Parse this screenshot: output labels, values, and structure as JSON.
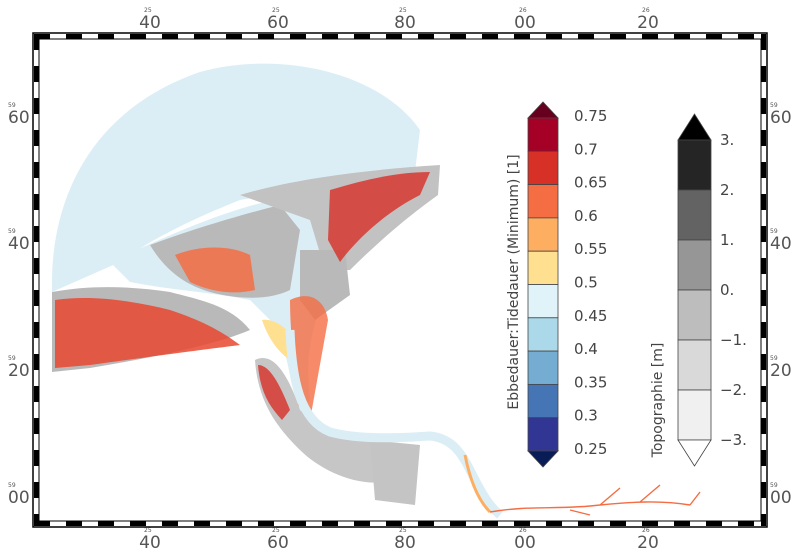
{
  "map": {
    "axis_ticks": {
      "top": [
        {
          "major": "40",
          "minor": "25"
        },
        {
          "major": "60",
          "minor": "25"
        },
        {
          "major": "80",
          "minor": "25"
        },
        {
          "major": "00",
          "minor": "26"
        },
        {
          "major": "20",
          "minor": "26"
        }
      ],
      "bottom": [
        {
          "major": "40",
          "minor": "25"
        },
        {
          "major": "60",
          "minor": "25"
        },
        {
          "major": "80",
          "minor": "25"
        },
        {
          "major": "00",
          "minor": "26"
        },
        {
          "major": "20",
          "minor": "26"
        }
      ],
      "left": [
        {
          "major": "60",
          "minor": "59"
        },
        {
          "major": "40",
          "minor": "59"
        },
        {
          "major": "20",
          "minor": "59"
        },
        {
          "major": "00",
          "minor": "59"
        }
      ],
      "right": [
        {
          "major": "60",
          "minor": "59"
        },
        {
          "major": "40",
          "minor": "59"
        },
        {
          "major": "20",
          "minor": "59"
        },
        {
          "major": "00",
          "minor": "59"
        }
      ]
    },
    "colors": {
      "water_background": "#dceef5",
      "land_gray": "#b9b9b9",
      "frame": "#000000"
    }
  },
  "ratio_colorbar": {
    "title": "Ebbedauer:Tidedauer (Minimum) [1]",
    "labels": [
      "0.75",
      "0.7",
      "0.65",
      "0.6",
      "0.55",
      "0.5",
      "0.45",
      "0.4",
      "0.35",
      "0.3",
      "0.25"
    ],
    "colors_top_to_bottom": [
      "#a50026",
      "#d73027",
      "#f46d43",
      "#fdae61",
      "#fee090",
      "#e0f3f8",
      "#abd9e9",
      "#74add1",
      "#4575b4",
      "#313695"
    ],
    "over_color": "#67001f",
    "under_color": "#081d58"
  },
  "topo_colorbar": {
    "title": "Topographie [m]",
    "labels": [
      "3.",
      "2.",
      "1.",
      "0.",
      "−1.",
      "−2.",
      "−3."
    ],
    "colors_top_to_bottom": [
      "#252525",
      "#636363",
      "#969696",
      "#bdbdbd",
      "#d9d9d9",
      "#f0f0f0"
    ],
    "over_color": "#000000",
    "under_color": "#ffffff"
  }
}
